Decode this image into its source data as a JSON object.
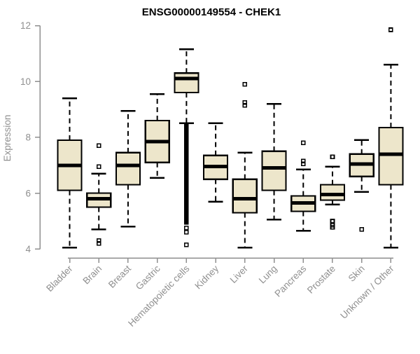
{
  "chart_data": {
    "type": "boxplot",
    "title": "ENSG00000149554 - CHEK1",
    "xlabel": "",
    "ylabel": "Expression",
    "ylim": [
      4,
      12
    ],
    "yticks": [
      4,
      6,
      8,
      10,
      12
    ],
    "grid": false,
    "legend": null,
    "background_color": "#FFFFFF",
    "box_fill_color": "#EDE6CB",
    "box_line_color": "#000000",
    "axis_color": "#8F8F8F",
    "label_color": "#8F8F8F",
    "categories": [
      "Bladder",
      "Brain",
      "Breast",
      "Gastric",
      "Hematopoietic cells",
      "Kidney",
      "Liver",
      "Lung",
      "Pancreas",
      "Prostate",
      "Skin",
      "Unknown / Other"
    ],
    "series": [
      {
        "category": "Bladder",
        "whisker_low": 4.05,
        "q1": 6.1,
        "median": 7.0,
        "q3": 7.9,
        "whisker_high": 9.4,
        "outliers": []
      },
      {
        "category": "Brain",
        "whisker_low": 4.7,
        "q1": 5.5,
        "median": 5.8,
        "q3": 6.0,
        "whisker_high": 6.7,
        "outliers": [
          7.7,
          6.95,
          4.3,
          4.2
        ]
      },
      {
        "category": "Breast",
        "whisker_low": 4.8,
        "q1": 6.3,
        "median": 7.0,
        "q3": 7.45,
        "whisker_high": 8.95,
        "outliers": []
      },
      {
        "category": "Gastric",
        "whisker_low": 6.55,
        "q1": 7.1,
        "median": 7.85,
        "q3": 8.6,
        "whisker_high": 9.55,
        "outliers": []
      },
      {
        "category": "Hematopoietic cells",
        "whisker_low": 8.5,
        "q1": 9.6,
        "median": 10.1,
        "q3": 10.3,
        "whisker_high": 11.15,
        "outliers": [
          8.4,
          8.35,
          8.3,
          8.25,
          8.2,
          8.15,
          8.1,
          8.05,
          8.0,
          7.95,
          7.9,
          7.85,
          7.8,
          7.75,
          7.7,
          7.65,
          7.6,
          7.55,
          7.5,
          7.45,
          7.4,
          7.35,
          7.3,
          7.25,
          7.2,
          7.15,
          7.1,
          7.05,
          7.0,
          6.95,
          6.9,
          6.85,
          6.8,
          6.75,
          6.7,
          6.65,
          6.6,
          6.55,
          6.5,
          6.45,
          6.4,
          6.35,
          6.3,
          6.25,
          6.2,
          6.15,
          6.1,
          6.05,
          6.0,
          5.95,
          5.9,
          5.85,
          5.8,
          5.75,
          5.7,
          5.65,
          5.6,
          5.55,
          5.5,
          5.45,
          5.4,
          5.35,
          5.3,
          5.25,
          5.2,
          5.15,
          5.1,
          5.05,
          5.0,
          4.95,
          4.75,
          4.6,
          4.15
        ]
      },
      {
        "category": "Kidney",
        "whisker_low": 5.7,
        "q1": 6.5,
        "median": 6.95,
        "q3": 7.35,
        "whisker_high": 8.5,
        "outliers": []
      },
      {
        "category": "Liver",
        "whisker_low": 4.05,
        "q1": 5.3,
        "median": 5.8,
        "q3": 6.5,
        "whisker_high": 7.45,
        "outliers": [
          9.9,
          9.25,
          9.15
        ]
      },
      {
        "category": "Lung",
        "whisker_low": 5.05,
        "q1": 6.1,
        "median": 6.9,
        "q3": 7.5,
        "whisker_high": 9.2,
        "outliers": []
      },
      {
        "category": "Pancreas",
        "whisker_low": 4.65,
        "q1": 5.35,
        "median": 5.65,
        "q3": 5.9,
        "whisker_high": 6.85,
        "outliers": [
          7.8,
          7.15,
          7.05
        ]
      },
      {
        "category": "Prostate",
        "whisker_low": 5.6,
        "q1": 5.75,
        "median": 5.95,
        "q3": 6.3,
        "whisker_high": 6.95,
        "outliers": [
          7.3,
          5.0,
          4.85,
          4.78
        ]
      },
      {
        "category": "Skin",
        "whisker_low": 6.05,
        "q1": 6.6,
        "median": 7.05,
        "q3": 7.4,
        "whisker_high": 7.9,
        "outliers": [
          4.7
        ]
      },
      {
        "category": "Unknown / Other",
        "whisker_low": 4.05,
        "q1": 6.3,
        "median": 7.4,
        "q3": 8.35,
        "whisker_high": 10.6,
        "outliers": [
          11.85
        ]
      }
    ]
  }
}
